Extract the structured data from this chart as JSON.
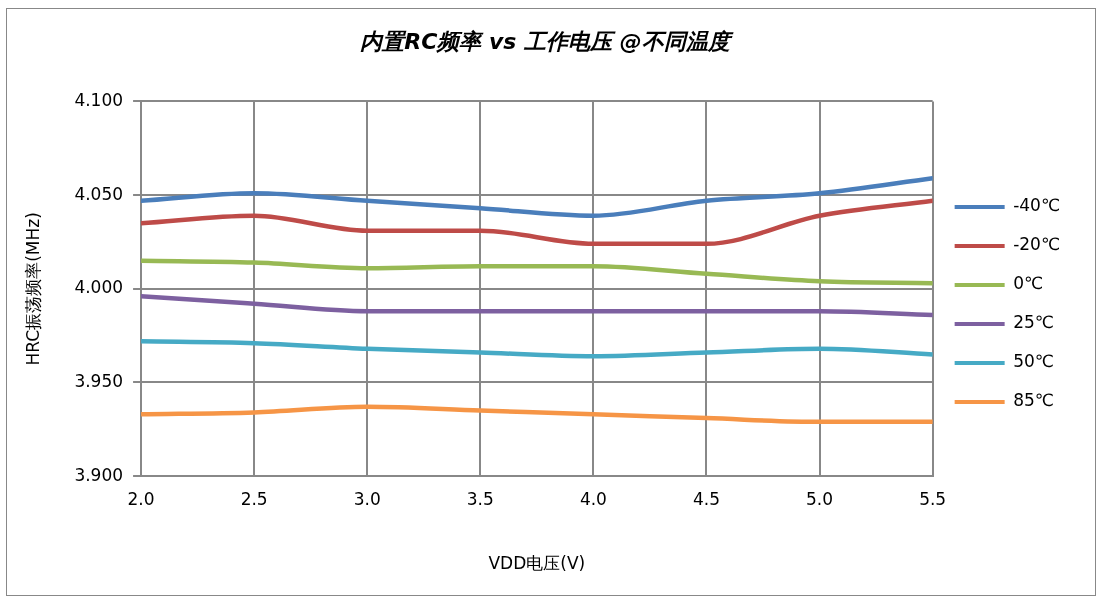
{
  "chart_data": {
    "type": "line",
    "title": "内置RC频率 vs 工作电压 @不同温度",
    "xlabel": "VDD电压(V)",
    "ylabel": "HRC振荡频率(MHz)",
    "x": [
      2.0,
      2.5,
      3.0,
      3.5,
      4.0,
      4.5,
      5.0,
      5.5
    ],
    "series": [
      {
        "name": "-40℃",
        "color": "#4a7ebb",
        "values": [
          4.047,
          4.051,
          4.047,
          4.043,
          4.039,
          4.047,
          4.051,
          4.059
        ]
      },
      {
        "name": "-20℃",
        "color": "#be4b48",
        "values": [
          4.035,
          4.039,
          4.031,
          4.031,
          4.024,
          4.024,
          4.039,
          4.047
        ]
      },
      {
        "name": "0℃",
        "color": "#98b954",
        "values": [
          4.015,
          4.014,
          4.011,
          4.012,
          4.012,
          4.008,
          4.004,
          4.003
        ]
      },
      {
        "name": "25℃",
        "color": "#7d60a0",
        "values": [
          3.996,
          3.992,
          3.988,
          3.988,
          3.988,
          3.988,
          3.988,
          3.986
        ]
      },
      {
        "name": "50℃",
        "color": "#46aac5",
        "values": [
          3.972,
          3.971,
          3.968,
          3.966,
          3.964,
          3.966,
          3.968,
          3.965
        ]
      },
      {
        "name": "85℃",
        "color": "#f69546",
        "values": [
          3.933,
          3.934,
          3.937,
          3.935,
          3.933,
          3.931,
          3.929,
          3.929
        ]
      }
    ],
    "xlim": [
      2.0,
      5.5
    ],
    "xticks": [
      {
        "value": 2.0,
        "label": "2.0"
      },
      {
        "value": 2.5,
        "label": "2.5"
      },
      {
        "value": 3.0,
        "label": "3.0"
      },
      {
        "value": 3.5,
        "label": "3.5"
      },
      {
        "value": 4.0,
        "label": "4.0"
      },
      {
        "value": 4.5,
        "label": "4.5"
      },
      {
        "value": 5.0,
        "label": "5.0"
      },
      {
        "value": 5.5,
        "label": "5.5"
      }
    ],
    "ylim": [
      3.9,
      4.1
    ],
    "yticks": [
      {
        "value": 3.9,
        "label": "3.900"
      },
      {
        "value": 3.95,
        "label": "3.950"
      },
      {
        "value": 4.0,
        "label": "4.000"
      },
      {
        "value": 4.05,
        "label": "4.050"
      },
      {
        "value": 4.1,
        "label": "4.100"
      }
    ],
    "grid": true,
    "legend": "right",
    "marker": "none",
    "line_style": "solid"
  }
}
